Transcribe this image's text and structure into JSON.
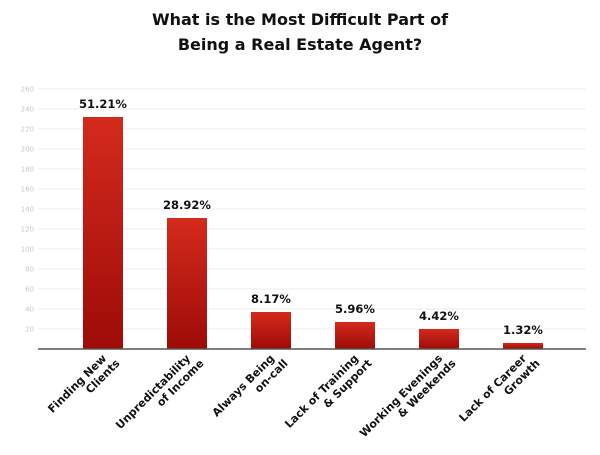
{
  "chart_data": {
    "type": "bar",
    "title": [
      "What is the Most Difficult Part of",
      "Being a Real Estate Agent?"
    ],
    "xlabel": "",
    "ylabel": "",
    "ylim": [
      0,
      260
    ],
    "yticks": [
      20,
      40,
      60,
      80,
      100,
      120,
      140,
      160,
      180,
      200,
      220,
      240,
      260
    ],
    "grid": true,
    "categories": [
      [
        "Finding New",
        "Clients"
      ],
      [
        "Unpredictability",
        "of Income"
      ],
      [
        "Always Being",
        "on-call"
      ],
      [
        "Lack of Training",
        "& Support"
      ],
      [
        "Working Evenings",
        "& Weekends"
      ],
      [
        "Lack of Career",
        "Growth"
      ]
    ],
    "values": [
      232,
      131,
      37,
      27,
      20,
      6
    ],
    "data_labels": [
      "51.21%",
      "28.92%",
      "8.17%",
      "5.96%",
      "4.42%",
      "1.32%"
    ],
    "colors": {
      "bar_top": "#d42a1c",
      "bar_bottom": "#9e0b08",
      "grid": "#ececec",
      "axis": "#555555"
    }
  }
}
